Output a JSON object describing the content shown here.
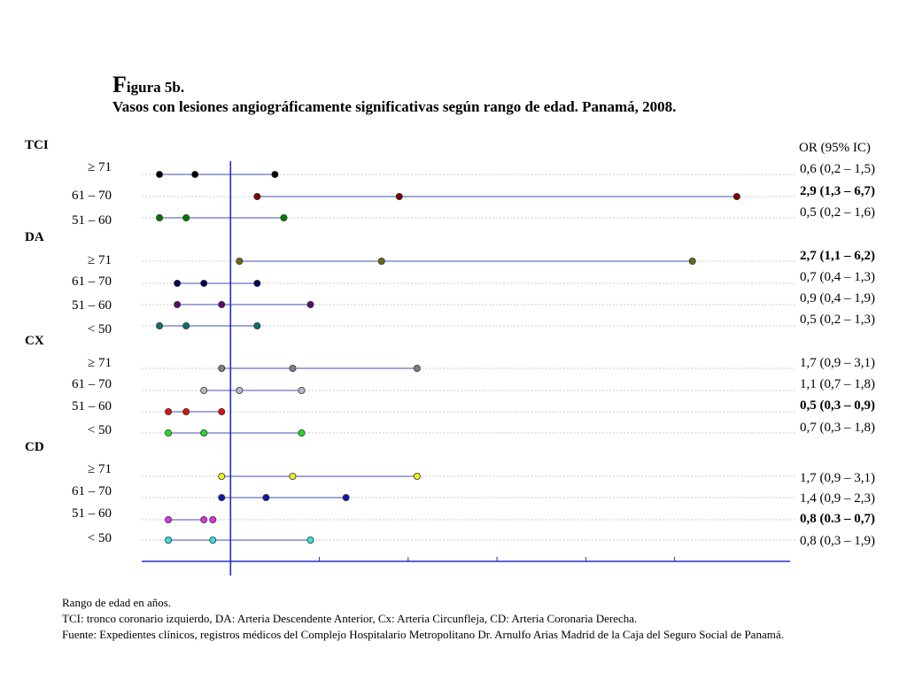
{
  "title": {
    "first_letter": "F",
    "rest": "igura 5b.",
    "subtitle": "Vasos con lesiones angiográficamente significativas según rango de edad. Panamá, 2008."
  },
  "or_header": "OR (95% IC)",
  "footnotes": [
    "Rango de edad en años.",
    "TCI: tronco coronario izquierdo, DA: Arteria Descendente Anterior, Cx: Arteria Circunfleja, CD: Arteria Coronaria Derecha.",
    "Fuente: Expedientes clínicos, registros médicos del Complejo Hospitalario Metropolitano Dr. Arnulfo Arias Madrid de la Caja del Seguro Social de Panamá."
  ],
  "chart_data": {
    "type": "forest",
    "reference_value": 1,
    "x_range": [
      0.0,
      7.3
    ],
    "x_ticks": [
      1,
      2,
      3,
      4,
      5,
      6
    ],
    "groups": [
      {
        "name": "TCI",
        "rows": [
          {
            "label": "≥ 71",
            "or": 0.6,
            "low": 0.2,
            "high": 1.5,
            "text": "0,6 (0,2 – 1,5)",
            "bold": false,
            "color": "#000000"
          },
          {
            "label": "61 – 70",
            "or": 2.9,
            "low": 1.3,
            "high": 6.7,
            "text": "2,9 (1,3 – 6,7)",
            "bold": true,
            "color": "#7a0000"
          },
          {
            "label": "51 – 60",
            "or": 0.5,
            "low": 0.2,
            "high": 1.6,
            "text": "0,5 (0,2 – 1,6)",
            "bold": false,
            "color": "#007a00"
          }
        ]
      },
      {
        "name": "DA",
        "rows": [
          {
            "label": "≥ 71",
            "or": 2.7,
            "low": 1.1,
            "high": 6.2,
            "text": "2,7 (1,1 – 6,2)",
            "bold": true,
            "color": "#6b6b10"
          },
          {
            "label": "61 – 70",
            "or": 0.7,
            "low": 0.4,
            "high": 1.3,
            "text": "0,7 (0,4 – 1,3)",
            "bold": false,
            "color": "#00005a"
          },
          {
            "label": "51 – 60",
            "or": 0.9,
            "low": 0.4,
            "high": 1.9,
            "text": "0,9 (0,4 – 1,9)",
            "bold": false,
            "color": "#5a0a6a"
          },
          {
            "label": "< 50",
            "or": 0.5,
            "low": 0.2,
            "high": 1.3,
            "text": "0,5 (0,2 – 1,3)",
            "bold": false,
            "color": "#107070"
          }
        ]
      },
      {
        "name": "CX",
        "rows": [
          {
            "label": "≥ 71",
            "or": 1.7,
            "low": 0.9,
            "high": 3.1,
            "text": "1,7 (0,9 – 3,1)",
            "bold": false,
            "color": "#808080"
          },
          {
            "label": "61 – 70",
            "or": 1.1,
            "low": 0.7,
            "high": 1.8,
            "text": "1,1 (0,7 – 1,8)",
            "bold": false,
            "color": "#b8b8c8"
          },
          {
            "label": "51 – 60",
            "or": 0.5,
            "low": 0.3,
            "high": 0.9,
            "text": "0,5 (0,3 – 0,9)",
            "bold": true,
            "color": "#dd1111"
          },
          {
            "label": "< 50",
            "or": 0.7,
            "low": 0.3,
            "high": 1.8,
            "text": "0,7 (0,3 – 1,8)",
            "bold": false,
            "color": "#22dd22"
          }
        ]
      },
      {
        "name": "CD",
        "rows": [
          {
            "label": "≥ 71",
            "or": 1.7,
            "low": 0.9,
            "high": 3.1,
            "text": "1,7 (0,9 – 3,1)",
            "bold": false,
            "color": "#f0f020"
          },
          {
            "label": "61 – 70",
            "or": 1.4,
            "low": 0.9,
            "high": 2.3,
            "text": "1,4 (0,9 – 2,3)",
            "bold": false,
            "color": "#0a1aaa"
          },
          {
            "label": "51 – 60",
            "or": 0.8,
            "low": 0.3,
            "high": 0.7,
            "text": "0,8 (0.3 – 0,7)",
            "bold": true,
            "color": "#e030e0"
          },
          {
            "label": "< 50",
            "or": 0.8,
            "low": 0.3,
            "high": 1.9,
            "text": "0,8 (0,3 – 1,9)",
            "bold": false,
            "color": "#30e0e0"
          }
        ]
      }
    ],
    "colors": {
      "axis": "#2030c0",
      "ci_line": "#4050b0",
      "row_guide": "#c8c8c8"
    }
  }
}
